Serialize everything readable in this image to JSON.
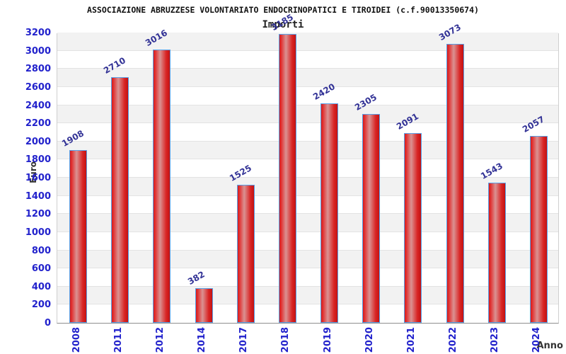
{
  "title": "ASSOCIAZIONE ABRUZZESE VOLONTARIATO ENDOCRINOPATICI E TIROIDEI (c.f.90013350674)",
  "subtitle": "Importi",
  "chart_data": {
    "type": "bar",
    "title": "ASSOCIAZIONE ABRUZZESE VOLONTARIATO ENDOCRINOPATICI E TIROIDEI (c.f.90013350674)",
    "subtitle": "Importi",
    "categories": [
      "2008",
      "2011",
      "2012",
      "2014",
      "2017",
      "2018",
      "2019",
      "2020",
      "2021",
      "2022",
      "2023",
      "2024"
    ],
    "values": [
      1908,
      2710,
      3016,
      382,
      1525,
      3185,
      2420,
      2305,
      2091,
      3073,
      1543,
      2057
    ],
    "xlabel": "Anno",
    "ylabel": "Euro",
    "ylim": [
      0,
      3200
    ],
    "ytick_step": 200,
    "yticks": [
      0,
      200,
      400,
      600,
      800,
      1000,
      1200,
      1400,
      1600,
      1800,
      2000,
      2200,
      2400,
      2600,
      2800,
      3000,
      3200
    ],
    "grid": true,
    "legend_position": "none",
    "colors": {
      "bar_fill_edge": "#d51c1c",
      "bar_fill_mid": "#da9292",
      "bar_border": "#58a1e8",
      "tick_label": "#2222cc",
      "value_label": "#323296",
      "axis_title": "#333333",
      "band": "#f2f2f2",
      "gridline": "#e3e3e3"
    }
  }
}
